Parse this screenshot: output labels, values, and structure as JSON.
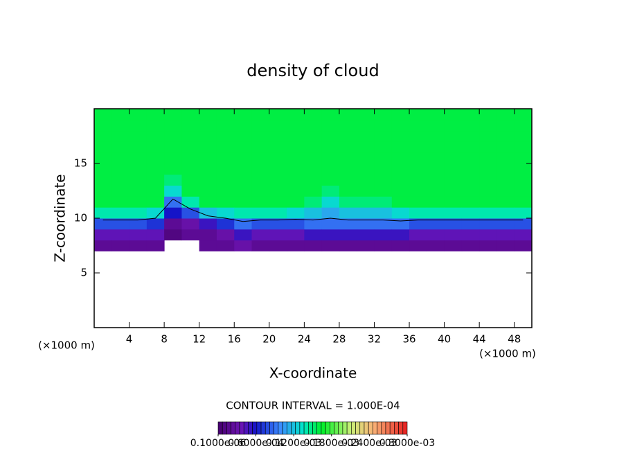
{
  "chart_data": {
    "type": "heatmap",
    "title": "density of cloud",
    "x_label": "X-coordinate",
    "y_label": "Z-coordinate",
    "x_unit": "(×1000 m)",
    "y_unit": "(×1000 m)",
    "annotation": "CONTOUR INTERVAL = 1.000E-04",
    "contour_level": 0.0001,
    "xlim": [
      0,
      50
    ],
    "ylim": [
      0,
      20
    ],
    "xticks": [
      4,
      8,
      12,
      16,
      20,
      24,
      28,
      32,
      36,
      40,
      44,
      48
    ],
    "yticks": [
      5,
      10,
      15
    ],
    "x": [
      1,
      3,
      5,
      7,
      9,
      11,
      13,
      15,
      17,
      19,
      21,
      23,
      25,
      27,
      29,
      31,
      33,
      35,
      37,
      39,
      41,
      43,
      45,
      47,
      49
    ],
    "z": [
      7.5,
      8.5,
      9.5,
      10.5,
      11.5,
      12.5,
      13.5,
      14.5,
      15.5,
      16.5,
      17.5,
      18.5,
      19.5
    ],
    "values": [
      [
        2e-05,
        4e-05,
        8e-05,
        0.00014,
        0.00016,
        0.00016,
        0.00016,
        0.00016,
        0.00016,
        0.00016,
        0.00016,
        0.00016,
        0.00016
      ],
      [
        2e-05,
        4e-05,
        8e-05,
        0.00014,
        0.00016,
        0.00016,
        0.00016,
        0.00016,
        0.00016,
        0.00016,
        0.00016,
        0.00016,
        0.00016
      ],
      [
        2e-05,
        4e-05,
        8e-05,
        0.00014,
        0.00016,
        0.00016,
        0.00016,
        0.00016,
        0.00016,
        0.00016,
        0.00016,
        0.00016,
        0.00016
      ],
      [
        2e-05,
        4e-05,
        7e-05,
        0.00013,
        0.00016,
        0.00016,
        0.00016,
        0.00016,
        0.00016,
        0.00016,
        0.00016,
        0.00016,
        0.00016
      ],
      [
        null,
        1e-05,
        2e-05,
        6e-05,
        9e-05,
        0.00013,
        0.00015,
        0.00016,
        0.00016,
        0.00016,
        0.00016,
        0.00016,
        0.00016
      ],
      [
        null,
        2e-05,
        3e-05,
        8e-05,
        0.00014,
        0.00016,
        0.00016,
        0.00016,
        0.00016,
        0.00016,
        0.00016,
        0.00016,
        0.00016
      ],
      [
        2e-05,
        2e-05,
        5e-05,
        0.00012,
        0.00016,
        0.00016,
        0.00016,
        0.00016,
        0.00016,
        0.00016,
        0.00016,
        0.00016,
        0.00016
      ],
      [
        2e-05,
        3e-05,
        7e-05,
        0.00013,
        0.00016,
        0.00016,
        0.00016,
        0.00016,
        0.00016,
        0.00016,
        0.00016,
        0.00016,
        0.00016
      ],
      [
        3e-05,
        5e-05,
        9e-05,
        0.00014,
        0.00016,
        0.00016,
        0.00016,
        0.00016,
        0.00016,
        0.00016,
        0.00016,
        0.00016,
        0.00016
      ],
      [
        2e-05,
        4e-05,
        8e-05,
        0.00014,
        0.00016,
        0.00016,
        0.00016,
        0.00016,
        0.00016,
        0.00016,
        0.00016,
        0.00016,
        0.00016
      ],
      [
        2e-05,
        4e-05,
        8e-05,
        0.00014,
        0.00016,
        0.00016,
        0.00016,
        0.00016,
        0.00016,
        0.00016,
        0.00016,
        0.00016,
        0.00016
      ],
      [
        2e-05,
        4e-05,
        8e-05,
        0.00013,
        0.00016,
        0.00016,
        0.00016,
        0.00016,
        0.00016,
        0.00016,
        0.00016,
        0.00016,
        0.00016
      ],
      [
        2e-05,
        5e-05,
        9e-05,
        0.00012,
        0.00015,
        0.00016,
        0.00016,
        0.00016,
        0.00016,
        0.00016,
        0.00016,
        0.00016,
        0.00016
      ],
      [
        2e-05,
        5e-05,
        9e-05,
        0.00011,
        0.00013,
        0.00015,
        0.00016,
        0.00016,
        0.00016,
        0.00016,
        0.00016,
        0.00016,
        0.00016
      ],
      [
        2e-05,
        5e-05,
        9e-05,
        0.00012,
        0.00015,
        0.00016,
        0.00016,
        0.00016,
        0.00016,
        0.00016,
        0.00016,
        0.00016,
        0.00016
      ],
      [
        2e-05,
        5e-05,
        9e-05,
        0.00012,
        0.00015,
        0.00016,
        0.00016,
        0.00016,
        0.00016,
        0.00016,
        0.00016,
        0.00016,
        0.00016
      ],
      [
        2e-05,
        5e-05,
        9e-05,
        0.00012,
        0.00015,
        0.00016,
        0.00016,
        0.00016,
        0.00016,
        0.00016,
        0.00016,
        0.00016,
        0.00016
      ],
      [
        2e-05,
        5e-05,
        9e-05,
        0.00013,
        0.00016,
        0.00016,
        0.00016,
        0.00016,
        0.00016,
        0.00016,
        0.00016,
        0.00016,
        0.00016
      ],
      [
        2e-05,
        4e-05,
        8e-05,
        0.00014,
        0.00016,
        0.00016,
        0.00016,
        0.00016,
        0.00016,
        0.00016,
        0.00016,
        0.00016,
        0.00016
      ],
      [
        2e-05,
        4e-05,
        8e-05,
        0.00014,
        0.00016,
        0.00016,
        0.00016,
        0.00016,
        0.00016,
        0.00016,
        0.00016,
        0.00016,
        0.00016
      ],
      [
        2e-05,
        4e-05,
        8e-05,
        0.00014,
        0.00016,
        0.00016,
        0.00016,
        0.00016,
        0.00016,
        0.00016,
        0.00016,
        0.00016,
        0.00016
      ],
      [
        2e-05,
        4e-05,
        8e-05,
        0.00014,
        0.00016,
        0.00016,
        0.00016,
        0.00016,
        0.00016,
        0.00016,
        0.00016,
        0.00016,
        0.00016
      ],
      [
        2e-05,
        4e-05,
        8e-05,
        0.00014,
        0.00016,
        0.00016,
        0.00016,
        0.00016,
        0.00016,
        0.00016,
        0.00016,
        0.00016,
        0.00016
      ],
      [
        2e-05,
        4e-05,
        8e-05,
        0.00014,
        0.00016,
        0.00016,
        0.00016,
        0.00016,
        0.00016,
        0.00016,
        0.00016,
        0.00016,
        0.00016
      ],
      [
        2e-05,
        4e-05,
        8e-05,
        0.00014,
        0.00016,
        0.00016,
        0.00016,
        0.00016,
        0.00016,
        0.00016,
        0.00016,
        0.00016,
        0.00016
      ]
    ],
    "clim": [
      1e-07,
      0.0003
    ],
    "colorbar_ticks": [
      {
        "value": 1e-07,
        "label": "0.1000e-06"
      },
      {
        "value": 6e-05,
        "label": "0.6000e-04"
      },
      {
        "value": 0.00012,
        "label": "0.1200e-03"
      },
      {
        "value": 0.00018,
        "label": "0.1800e-03"
      },
      {
        "value": 0.00024,
        "label": "0.2400e-03"
      },
      {
        "value": 0.0003,
        "label": "0.3000e-03"
      }
    ]
  }
}
